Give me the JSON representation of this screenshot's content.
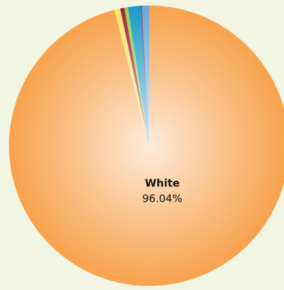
{
  "chart_data": {
    "type": "pie",
    "categories": [
      "White",
      null,
      null,
      null,
      null,
      null,
      null
    ],
    "values": [
      96.04,
      0.67,
      0.47,
      0.42,
      1.45,
      0.15,
      0.8
    ],
    "value_labels": [
      "96.04%",
      null,
      null,
      null,
      null,
      null,
      null
    ],
    "colors": [
      "#f7a24d",
      "#f3e66c",
      "#a1223a",
      "#9ccc5a",
      "#1a9cc4",
      "#8b3fa0",
      "#6aa9d6"
    ]
  }
}
